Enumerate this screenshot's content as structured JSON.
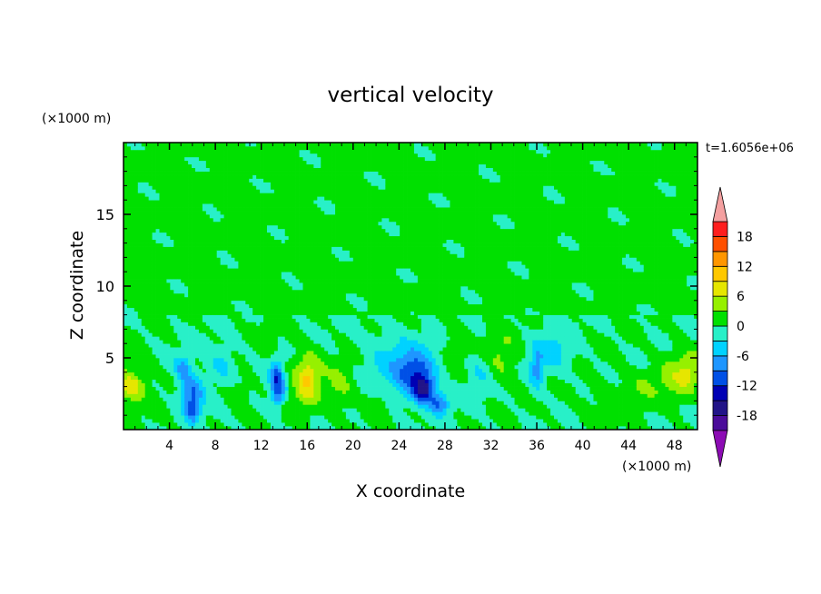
{
  "chart_data": {
    "type": "heatmap",
    "title": "vertical velocity",
    "xlabel": "X coordinate",
    "ylabel": "Z coordinate",
    "x_unit": "(×1000 m)",
    "y_unit": "(×1000 m)",
    "time_label": "t=1.6056e+06",
    "xlim": [
      0,
      50
    ],
    "ylim": [
      0,
      20
    ],
    "x_ticks": [
      4,
      8,
      12,
      16,
      20,
      24,
      28,
      32,
      36,
      40,
      44,
      48
    ],
    "y_ticks": [
      5,
      10,
      15
    ],
    "colorbar": {
      "levels": [
        -21,
        -18,
        -15,
        -12,
        -9,
        -6,
        -3,
        0,
        3,
        6,
        9,
        12,
        15,
        18,
        21
      ],
      "tick_labels": [
        18,
        12,
        6,
        0,
        -6,
        -12,
        -18
      ],
      "colors": [
        "#4b0c9a",
        "#221488",
        "#0000b4",
        "#0050e6",
        "#1e96ff",
        "#00d2ff",
        "#28f0c8",
        "#00e000",
        "#96f000",
        "#e6e600",
        "#ffc800",
        "#ff9600",
        "#ff5000",
        "#ff1e1e"
      ],
      "under_color": "#8c0cb4",
      "over_color": "#f4a0a0"
    },
    "features": [
      {
        "x": 0.6,
        "z": 3.2,
        "w": 3.5,
        "sx": 1.8,
        "sz": 1.6
      },
      {
        "x": 0.6,
        "z": 3.0,
        "w": 5.0,
        "sx": 1.0,
        "sz": 0.8
      },
      {
        "x": 16.0,
        "z": 3.5,
        "w": 5.0,
        "sx": 1.4,
        "sz": 2.2
      },
      {
        "x": 16.0,
        "z": 3.6,
        "w": 4.0,
        "sx": 0.8,
        "sz": 1.3
      },
      {
        "x": 19.0,
        "z": 3.0,
        "w": 3.5,
        "sx": 1.3,
        "sz": 1.6
      },
      {
        "x": 48.3,
        "z": 3.8,
        "w": 4.5,
        "sx": 1.4,
        "sz": 1.8
      },
      {
        "x": 45.5,
        "z": 3.3,
        "w": 2.5,
        "sx": 2.0,
        "sz": 1.2
      },
      {
        "x": 49.5,
        "z": 4.2,
        "w": 4.0,
        "sx": 0.9,
        "sz": 1.3
      },
      {
        "x": 33.0,
        "z": 5.0,
        "w": 3.5,
        "sx": 1.4,
        "sz": 1.8
      },
      {
        "x": 29.0,
        "z": 6.0,
        "w": 3.0,
        "sx": 0.9,
        "sz": 1.5
      },
      {
        "x": 10.0,
        "z": 2.5,
        "w": 2.5,
        "sx": 1.1,
        "sz": 1.1
      },
      {
        "x": 12.5,
        "z": 6.5,
        "w": 2.0,
        "sx": 0.8,
        "sz": 1.0
      },
      {
        "x": 14.0,
        "z": 1.5,
        "w": 2.5,
        "sx": 0.7,
        "sz": 1.0
      },
      {
        "x": 22.0,
        "z": 2.0,
        "w": 2.0,
        "sx": 1.0,
        "sz": 1.0
      },
      {
        "x": 6.0,
        "z": 2.5,
        "w": -10.0,
        "sx": 1.0,
        "sz": 1.2
      },
      {
        "x": 5.2,
        "z": 4.3,
        "w": -7.0,
        "sx": 0.7,
        "sz": 0.9
      },
      {
        "x": 6.0,
        "z": 1.2,
        "w": -8.0,
        "sx": 0.6,
        "sz": 0.7
      },
      {
        "x": 13.5,
        "z": 2.7,
        "w": -11.0,
        "sx": 0.7,
        "sz": 1.3
      },
      {
        "x": 13.3,
        "z": 4.0,
        "w": -6.0,
        "sx": 0.5,
        "sz": 0.9
      },
      {
        "x": 25.5,
        "z": 3.8,
        "w": -10.0,
        "sx": 1.6,
        "sz": 1.6
      },
      {
        "x": 26.2,
        "z": 2.8,
        "w": -12.0,
        "sx": 0.9,
        "sz": 0.9
      },
      {
        "x": 27.5,
        "z": 1.8,
        "w": -9.0,
        "sx": 0.8,
        "sz": 0.7
      },
      {
        "x": 23.5,
        "z": 4.8,
        "w": -4.0,
        "sx": 2.5,
        "sz": 2.0
      },
      {
        "x": 36.0,
        "z": 4.2,
        "w": -7.0,
        "sx": 0.6,
        "sz": 1.4
      },
      {
        "x": 37.5,
        "z": 5.5,
        "w": -4.0,
        "sx": 1.6,
        "sz": 1.5
      },
      {
        "x": 8.5,
        "z": 4.5,
        "w": -4.0,
        "sx": 1.2,
        "sz": 1.2
      },
      {
        "x": 31.0,
        "z": 4.0,
        "w": -3.0,
        "sx": 1.0,
        "sz": 1.5
      },
      {
        "x": 42.0,
        "z": 2.0,
        "w": 1.5,
        "sx": 3.0,
        "sz": 1.5
      }
    ]
  }
}
